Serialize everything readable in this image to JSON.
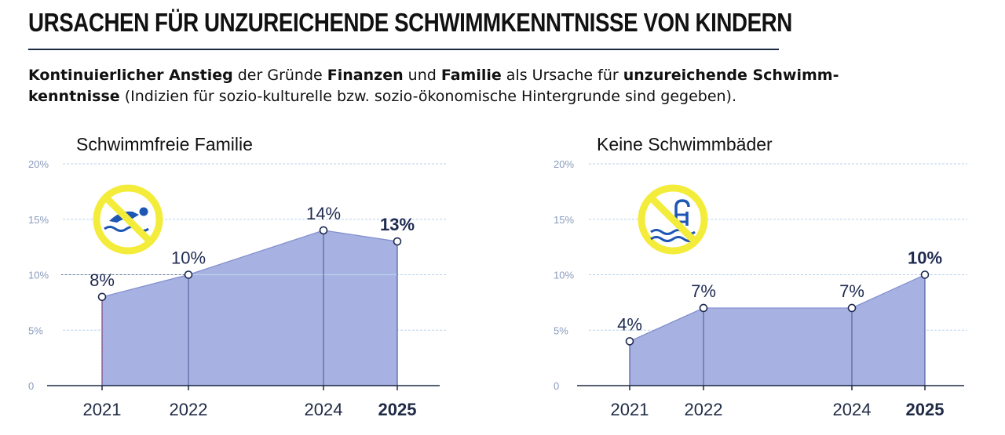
{
  "header": {
    "title": "URSACHEN FÜR UNZUREICHENDE SCHWIMMKENNTNISSE VON KINDERN",
    "subtitle_parts": [
      {
        "text": "Kontinuierlicher Anstieg",
        "bold": true
      },
      {
        "text": " der Gründe ",
        "bold": false
      },
      {
        "text": "Finanzen",
        "bold": true
      },
      {
        "text": " und ",
        "bold": false
      },
      {
        "text": "Familie",
        "bold": true
      },
      {
        "text": " als Ursache für ",
        "bold": false
      },
      {
        "text": "unzureichende Schwimm-",
        "bold": true
      },
      {
        "text": "kenntnisse",
        "bold": true
      },
      {
        "text": " (Indizien für sozio-kulturelle bzw. sozio-ökonomische Hintergrunde sind gegeben).",
        "bold": false
      }
    ]
  },
  "colors": {
    "area_fill": "#a7b1e2",
    "area_stroke": "#7f8dcc",
    "grid": "#b8d2ea",
    "axis": "#1f2a44",
    "icon_ring": "#f4ec3a",
    "icon_blue": "#1e56b4"
  },
  "chart_data": [
    {
      "type": "area",
      "title": "Schwimmfreie Familie",
      "icon": "no-swimming-icon",
      "x": [
        "2021",
        "2022",
        "2024",
        "2025"
      ],
      "y": [
        8,
        10,
        14,
        13
      ],
      "labels": [
        "8%",
        "10%",
        "14%",
        "13%"
      ],
      "bold_last": true,
      "yticks": [
        "20%",
        "15%",
        "10%",
        "5%",
        "0"
      ],
      "ylim": [
        0,
        20
      ],
      "grid": true
    },
    {
      "type": "area",
      "title": "Keine Schwimmbäder",
      "icon": "no-pool-icon",
      "x": [
        "2021",
        "2022",
        "2024",
        "2025"
      ],
      "y": [
        4,
        7,
        7,
        10
      ],
      "labels": [
        "4%",
        "7%",
        "7%",
        "10%"
      ],
      "bold_last": true,
      "yticks": [
        "20%",
        "15%",
        "10%",
        "5%",
        "0"
      ],
      "ylim": [
        0,
        20
      ],
      "grid": true
    }
  ]
}
